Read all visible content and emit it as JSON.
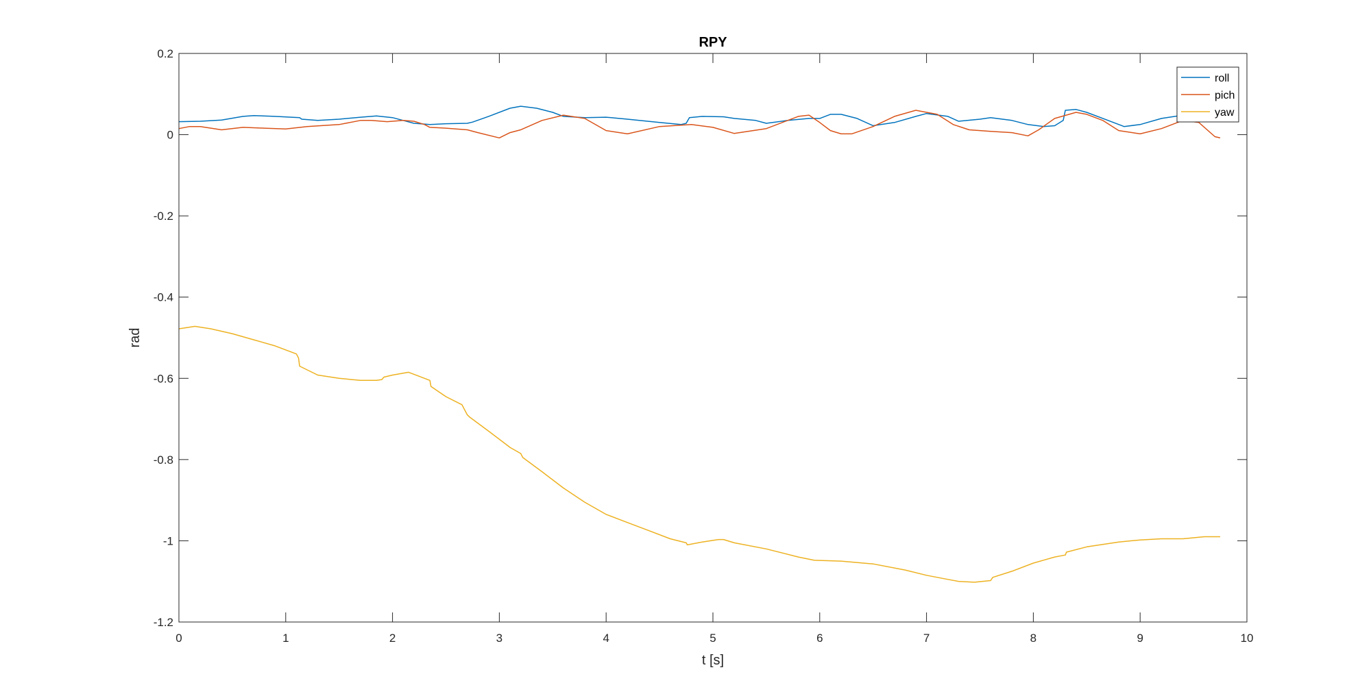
{
  "chart_data": {
    "type": "line",
    "title": "RPY",
    "xlabel": "t [s]",
    "ylabel": "rad",
    "xlim": [
      0,
      10
    ],
    "ylim": [
      -1.2,
      0.2
    ],
    "xticks": [
      0,
      1,
      2,
      3,
      4,
      5,
      6,
      7,
      8,
      9,
      10
    ],
    "yticks": [
      -1.2,
      -1,
      -0.8,
      -0.6,
      -0.4,
      -0.2,
      0,
      0.2
    ],
    "xtick_labels": [
      "0",
      "1",
      "2",
      "3",
      "4",
      "5",
      "6",
      "7",
      "8",
      "9",
      "10"
    ],
    "ytick_labels": [
      "-1.2",
      "-1",
      "-0.8",
      "-0.6",
      "-0.4",
      "-0.2",
      "0",
      "0.2"
    ],
    "grid": false,
    "legend_position": "top-right",
    "series": [
      {
        "name": "roll",
        "color": "#0072BD",
        "x": [
          0,
          0.2,
          0.4,
          0.6,
          0.7,
          0.9,
          1.13,
          1.15,
          1.3,
          1.5,
          1.7,
          1.85,
          2.0,
          2.1,
          2.2,
          2.35,
          2.5,
          2.7,
          2.75,
          2.9,
          3.1,
          3.2,
          3.35,
          3.5,
          3.6,
          3.8,
          4.0,
          4.2,
          4.5,
          4.7,
          4.75,
          4.78,
          4.9,
          5.1,
          5.2,
          5.4,
          5.5,
          5.7,
          5.9,
          6.0,
          6.1,
          6.2,
          6.35,
          6.5,
          6.7,
          6.9,
          7.0,
          7.2,
          7.3,
          7.5,
          7.6,
          7.8,
          7.95,
          8.1,
          8.2,
          8.28,
          8.3,
          8.4,
          8.5,
          8.7,
          8.85,
          9.0,
          9.2,
          9.4,
          9.6,
          9.75
        ],
        "y": [
          0.032,
          0.033,
          0.036,
          0.045,
          0.047,
          0.045,
          0.042,
          0.038,
          0.035,
          0.038,
          0.043,
          0.046,
          0.042,
          0.035,
          0.028,
          0.025,
          0.027,
          0.028,
          0.031,
          0.045,
          0.065,
          0.07,
          0.065,
          0.055,
          0.045,
          0.042,
          0.043,
          0.038,
          0.03,
          0.025,
          0.028,
          0.042,
          0.045,
          0.044,
          0.04,
          0.035,
          0.028,
          0.035,
          0.04,
          0.04,
          0.05,
          0.05,
          0.04,
          0.022,
          0.03,
          0.045,
          0.052,
          0.045,
          0.033,
          0.038,
          0.042,
          0.035,
          0.025,
          0.02,
          0.022,
          0.035,
          0.06,
          0.062,
          0.055,
          0.035,
          0.02,
          0.025,
          0.04,
          0.048,
          0.05,
          0.048
        ]
      },
      {
        "name": "pich",
        "color": "#D95319",
        "x": [
          0,
          0.1,
          0.2,
          0.4,
          0.6,
          0.8,
          1.0,
          1.2,
          1.5,
          1.7,
          1.8,
          1.95,
          2.1,
          2.2,
          2.3,
          2.35,
          2.5,
          2.7,
          2.8,
          3.0,
          3.1,
          3.2,
          3.4,
          3.6,
          3.8,
          4.0,
          4.2,
          4.5,
          4.8,
          5.0,
          5.2,
          5.5,
          5.8,
          5.9,
          6.0,
          6.1,
          6.2,
          6.3,
          6.5,
          6.7,
          6.9,
          7.1,
          7.25,
          7.4,
          7.6,
          7.8,
          7.95,
          8.05,
          8.2,
          8.4,
          8.5,
          8.65,
          8.8,
          9.0,
          9.2,
          9.4,
          9.55,
          9.7,
          9.75
        ],
        "y": [
          0.015,
          0.02,
          0.02,
          0.012,
          0.018,
          0.016,
          0.014,
          0.02,
          0.025,
          0.035,
          0.035,
          0.032,
          0.035,
          0.033,
          0.025,
          0.018,
          0.016,
          0.012,
          0.005,
          -0.008,
          0.005,
          0.012,
          0.035,
          0.048,
          0.04,
          0.01,
          0.002,
          0.02,
          0.025,
          0.018,
          0.003,
          0.015,
          0.045,
          0.048,
          0.03,
          0.01,
          0.002,
          0.002,
          0.02,
          0.045,
          0.06,
          0.05,
          0.025,
          0.012,
          0.008,
          0.005,
          -0.003,
          0.012,
          0.04,
          0.055,
          0.05,
          0.035,
          0.01,
          0.002,
          0.015,
          0.035,
          0.03,
          -0.005,
          -0.008
        ]
      },
      {
        "name": "yaw",
        "color": "#EDB120",
        "x": [
          0,
          0.15,
          0.3,
          0.5,
          0.7,
          0.9,
          1.1,
          1.12,
          1.13,
          1.3,
          1.5,
          1.7,
          1.85,
          1.9,
          1.92,
          2.0,
          2.15,
          2.25,
          2.35,
          2.36,
          2.5,
          2.65,
          2.7,
          2.72,
          2.9,
          3.05,
          3.1,
          3.2,
          3.22,
          3.4,
          3.6,
          3.8,
          4.0,
          4.2,
          4.4,
          4.6,
          4.75,
          4.76,
          4.9,
          5.05,
          5.1,
          5.2,
          5.5,
          5.8,
          5.95,
          6.2,
          6.5,
          6.8,
          7.0,
          7.2,
          7.3,
          7.45,
          7.6,
          7.62,
          7.8,
          8.0,
          8.2,
          8.3,
          8.31,
          8.5,
          8.8,
          9.0,
          9.2,
          9.4,
          9.6,
          9.75
        ],
        "y": [
          -0.478,
          -0.472,
          -0.478,
          -0.49,
          -0.505,
          -0.52,
          -0.54,
          -0.55,
          -0.57,
          -0.592,
          -0.6,
          -0.605,
          -0.605,
          -0.603,
          -0.597,
          -0.592,
          -0.585,
          -0.595,
          -0.605,
          -0.62,
          -0.645,
          -0.665,
          -0.69,
          -0.695,
          -0.73,
          -0.76,
          -0.77,
          -0.785,
          -0.795,
          -0.83,
          -0.87,
          -0.905,
          -0.935,
          -0.955,
          -0.975,
          -0.995,
          -1.005,
          -1.01,
          -1.003,
          -0.997,
          -0.997,
          -1.005,
          -1.02,
          -1.04,
          -1.048,
          -1.05,
          -1.057,
          -1.072,
          -1.085,
          -1.095,
          -1.1,
          -1.102,
          -1.098,
          -1.09,
          -1.075,
          -1.055,
          -1.04,
          -1.035,
          -1.028,
          -1.015,
          -1.003,
          -0.998,
          -0.995,
          -0.995,
          -0.99,
          -0.99
        ]
      }
    ]
  }
}
